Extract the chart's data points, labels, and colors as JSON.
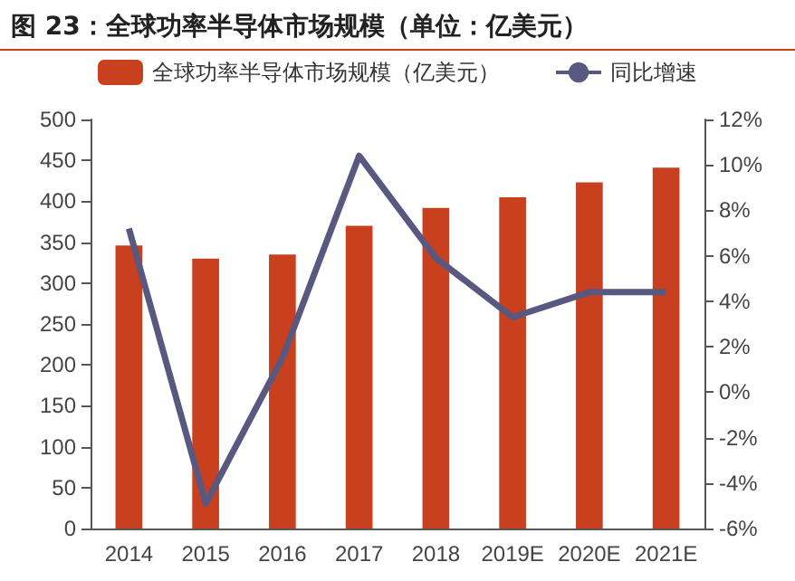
{
  "chart_data": {
    "type": "bar",
    "title": "图 23：全球功率半导体市场规模（单位：亿美元）",
    "categories": [
      "2014",
      "2015",
      "2016",
      "2017",
      "2018",
      "2019E",
      "2020E",
      "2021E"
    ],
    "series": [
      {
        "name": "全球功率半导体市场规模（亿美元）",
        "color": "#c9401f",
        "values": [
          346,
          330,
          335,
          370,
          392,
          405,
          423,
          441
        ]
      },
      {
        "name": "同比增速",
        "type": "line",
        "axis": "y2",
        "color": "#595880",
        "values": [
          7.2,
          -4.9,
          1.5,
          10.4,
          5.9,
          3.3,
          4.4,
          4.4
        ]
      }
    ],
    "ylim": [
      0,
      500
    ],
    "yticks": [
      0,
      50,
      100,
      150,
      200,
      250,
      300,
      350,
      400,
      450,
      500
    ],
    "y2lim": [
      -6,
      12
    ],
    "y2ticks": [
      {
        "value": -6,
        "label": "-6%"
      },
      {
        "value": -4,
        "label": "-4%"
      },
      {
        "value": -2,
        "label": "-2%"
      },
      {
        "value": 0,
        "label": "0%"
      },
      {
        "value": 2,
        "label": "2%"
      },
      {
        "value": 4,
        "label": "4%"
      },
      {
        "value": 6,
        "label": "6%"
      },
      {
        "value": 8,
        "label": "8%"
      },
      {
        "value": 10,
        "label": "10%"
      },
      {
        "value": 12,
        "label": "12%"
      }
    ],
    "legend": "top",
    "grid": false,
    "marker": "none"
  }
}
